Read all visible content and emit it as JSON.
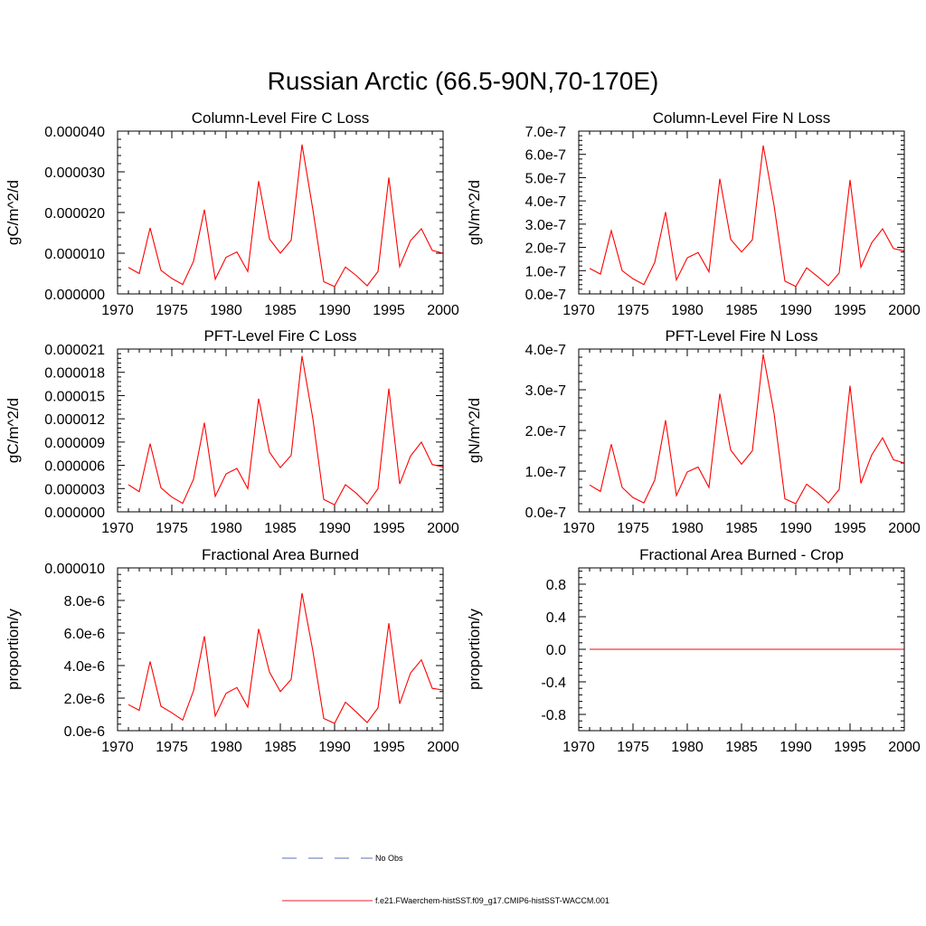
{
  "figure": {
    "title": "Russian Arctic (66.5-90N,70-170E)"
  },
  "legend": {
    "entries": [
      {
        "label": "No Obs",
        "color": "#5b6fb5",
        "style": "dashed"
      },
      {
        "label": "f.e21.FWaerchem-histSST.f09_g17.CMIP6-histSST-WACCM.001",
        "color": "#e8202a",
        "style": "solid"
      }
    ]
  },
  "chart_data": [
    {
      "type": "line",
      "title": "Column-Level Fire C Loss",
      "ylabel": "gC/m^2/d",
      "xlim": [
        1970,
        2000
      ],
      "ylim": [
        0,
        4e-05
      ],
      "xticks": [
        1970,
        1975,
        1980,
        1985,
        1990,
        1995,
        2000
      ],
      "xtick_labels": [
        "1970",
        "1975",
        "1980",
        "1985",
        "1990",
        "1995",
        "2000"
      ],
      "yticks": [
        0,
        1e-05,
        2e-05,
        3e-05,
        4e-05
      ],
      "ytick_labels": [
        "0.000000",
        "0.000010",
        "0.000020",
        "0.000030",
        "0.000040"
      ],
      "series": [
        {
          "color": "#ff0000",
          "x": [
            1971,
            1972,
            1973,
            1974,
            1975,
            1976,
            1977,
            1978,
            1979,
            1980,
            1981,
            1982,
            1983,
            1984,
            1985,
            1986,
            1987,
            1988,
            1989,
            1990,
            1991,
            1992,
            1993,
            1994,
            1995,
            1996,
            1997,
            1998,
            1999,
            2000
          ],
          "y": [
            6.5e-06,
            5e-06,
            1.62e-05,
            5.8e-06,
            3.8e-06,
            2.3e-06,
            8e-06,
            2.07e-05,
            3.6e-06,
            9e-06,
            1.03e-05,
            5.5e-06,
            2.77e-05,
            1.35e-05,
            1e-05,
            1.32e-05,
            3.67e-05,
            2.07e-05,
            3e-06,
            1.8e-06,
            6.6e-06,
            4.5e-06,
            2e-06,
            5.5e-06,
            2.86e-05,
            6.7e-06,
            1.31e-05,
            1.6e-05,
            1.07e-05,
            1e-05
          ]
        }
      ]
    },
    {
      "type": "line",
      "title": "Column-Level Fire N Loss",
      "ylabel": "gN/m^2/d",
      "xlim": [
        1970,
        2000
      ],
      "ylim": [
        0,
        7e-07
      ],
      "xticks": [
        1970,
        1975,
        1980,
        1985,
        1990,
        1995,
        2000
      ],
      "xtick_labels": [
        "1970",
        "1975",
        "1980",
        "1985",
        "1990",
        "1995",
        "2000"
      ],
      "yticks": [
        0,
        1e-07,
        2e-07,
        3e-07,
        4e-07,
        5e-07,
        6e-07,
        7e-07
      ],
      "ytick_labels": [
        "0.0e-7",
        "1.0e-7",
        "2.0e-7",
        "3.0e-7",
        "4.0e-7",
        "5.0e-7",
        "6.0e-7",
        "7.0e-7"
      ],
      "series": [
        {
          "color": "#ff0000",
          "x": [
            1971,
            1972,
            1973,
            1974,
            1975,
            1976,
            1977,
            1978,
            1979,
            1980,
            1981,
            1982,
            1983,
            1984,
            1985,
            1986,
            1987,
            1988,
            1989,
            1990,
            1991,
            1992,
            1993,
            1994,
            1995,
            1996,
            1997,
            1998,
            1999,
            2000
          ],
          "y": [
            1.1e-07,
            8.5e-08,
            2.72e-07,
            1e-07,
            6.5e-08,
            4e-08,
            1.35e-07,
            3.52e-07,
            6e-08,
            1.55e-07,
            1.78e-07,
            9.5e-08,
            4.95e-07,
            2.35e-07,
            1.8e-07,
            2.33e-07,
            6.38e-07,
            3.8e-07,
            5.5e-08,
            3.2e-08,
            1.12e-07,
            7.5e-08,
            3.5e-08,
            9e-08,
            4.9e-07,
            1.15e-07,
            2.2e-07,
            2.8e-07,
            1.95e-07,
            1.85e-07
          ]
        }
      ]
    },
    {
      "type": "line",
      "title": "PFT-Level Fire C Loss",
      "ylabel": "gC/m^2/d",
      "xlim": [
        1970,
        2000
      ],
      "ylim": [
        0,
        2.1e-05
      ],
      "xticks": [
        1970,
        1975,
        1980,
        1985,
        1990,
        1995,
        2000
      ],
      "xtick_labels": [
        "1970",
        "1975",
        "1980",
        "1985",
        "1990",
        "1995",
        "2000"
      ],
      "yticks": [
        0,
        3e-06,
        6e-06,
        9e-06,
        1.2e-05,
        1.5e-05,
        1.8e-05,
        2.1e-05
      ],
      "ytick_labels": [
        "0.000000",
        "0.000003",
        "0.000006",
        "0.000009",
        "0.000012",
        "0.000015",
        "0.000018",
        "0.000021"
      ],
      "series": [
        {
          "color": "#ff0000",
          "x": [
            1971,
            1972,
            1973,
            1974,
            1975,
            1976,
            1977,
            1978,
            1979,
            1980,
            1981,
            1982,
            1983,
            1984,
            1985,
            1986,
            1987,
            1988,
            1989,
            1990,
            1991,
            1992,
            1993,
            1994,
            1995,
            1996,
            1997,
            1998,
            1999,
            2000
          ],
          "y": [
            3.5e-06,
            2.6e-06,
            8.8e-06,
            3.1e-06,
            1.9e-06,
            1.1e-06,
            4.2e-06,
            1.15e-05,
            2e-06,
            4.9e-06,
            5.6e-06,
            3e-06,
            1.46e-05,
            7.7e-06,
            5.7e-06,
            7.3e-06,
            2.01e-05,
            1.2e-05,
            1.6e-06,
            9e-07,
            3.5e-06,
            2.4e-06,
            1e-06,
            3e-06,
            1.59e-05,
            3.6e-06,
            7.2e-06,
            9e-06,
            6.1e-06,
            5.8e-06
          ]
        }
      ]
    },
    {
      "type": "line",
      "title": "PFT-Level Fire N Loss",
      "ylabel": "gN/m^2/d",
      "xlim": [
        1970,
        2000
      ],
      "ylim": [
        0,
        4e-07
      ],
      "xticks": [
        1970,
        1975,
        1980,
        1985,
        1990,
        1995,
        2000
      ],
      "xtick_labels": [
        "1970",
        "1975",
        "1980",
        "1985",
        "1990",
        "1995",
        "2000"
      ],
      "yticks": [
        0,
        1e-07,
        2e-07,
        3e-07,
        4e-07
      ],
      "ytick_labels": [
        "0.0e-7",
        "1.0e-7",
        "2.0e-7",
        "3.0e-7",
        "4.0e-7"
      ],
      "series": [
        {
          "color": "#ff0000",
          "x": [
            1971,
            1972,
            1973,
            1974,
            1975,
            1976,
            1977,
            1978,
            1979,
            1980,
            1981,
            1982,
            1983,
            1984,
            1985,
            1986,
            1987,
            1988,
            1989,
            1990,
            1991,
            1992,
            1993,
            1994,
            1995,
            1996,
            1997,
            1998,
            1999,
            2000
          ],
          "y": [
            6.6e-08,
            5e-08,
            1.66e-07,
            6e-08,
            3.5e-08,
            2.2e-08,
            7.8e-08,
            2.25e-07,
            4e-08,
            9.8e-08,
            1.1e-07,
            6e-08,
            2.9e-07,
            1.52e-07,
            1.17e-07,
            1.5e-07,
            3.87e-07,
            2.42e-07,
            3.2e-08,
            2e-08,
            6.8e-08,
            4.7e-08,
            2.2e-08,
            5.5e-08,
            3.1e-07,
            7e-08,
            1.4e-07,
            1.82e-07,
            1.28e-07,
            1.2e-07
          ]
        }
      ]
    },
    {
      "type": "line",
      "title": "Fractional Area Burned",
      "ylabel": "proportion/y",
      "xlim": [
        1970,
        2000
      ],
      "ylim": [
        0,
        1e-05
      ],
      "xticks": [
        1970,
        1975,
        1980,
        1985,
        1990,
        1995,
        2000
      ],
      "xtick_labels": [
        "1970",
        "1975",
        "1980",
        "1985",
        "1990",
        "1995",
        "2000"
      ],
      "yticks": [
        0,
        2e-06,
        4e-06,
        6e-06,
        8e-06,
        1e-05
      ],
      "ytick_labels": [
        "0.0e-6",
        "2.0e-6",
        "4.0e-6",
        "6.0e-6",
        "8.0e-6",
        "0.000010"
      ],
      "series": [
        {
          "color": "#ff0000",
          "x": [
            1971,
            1972,
            1973,
            1974,
            1975,
            1976,
            1977,
            1978,
            1979,
            1980,
            1981,
            1982,
            1983,
            1984,
            1985,
            1986,
            1987,
            1988,
            1989,
            1990,
            1991,
            1992,
            1993,
            1994,
            1995,
            1996,
            1997,
            1998,
            1999,
            2000
          ],
          "y": [
            1.6e-06,
            1.25e-06,
            4.25e-06,
            1.5e-06,
            1.1e-06,
            6.5e-07,
            2.45e-06,
            5.8e-06,
            9e-07,
            2.3e-06,
            2.65e-06,
            1.45e-06,
            6.25e-06,
            3.6e-06,
            2.4e-06,
            3.15e-06,
            8.45e-06,
            4.9e-06,
            7.5e-07,
            4.5e-07,
            1.75e-06,
            1.15e-06,
            5e-07,
            1.4e-06,
            6.6e-06,
            1.65e-06,
            3.55e-06,
            4.35e-06,
            2.6e-06,
            2.5e-06
          ]
        }
      ]
    },
    {
      "type": "line",
      "title": "Fractional Area Burned - Crop",
      "ylabel": "proportion/y",
      "xlim": [
        1970,
        2000
      ],
      "ylim": [
        -1,
        1
      ],
      "xticks": [
        1970,
        1975,
        1980,
        1985,
        1990,
        1995,
        2000
      ],
      "xtick_labels": [
        "1970",
        "1975",
        "1980",
        "1985",
        "1990",
        "1995",
        "2000"
      ],
      "yticks": [
        -0.8,
        -0.4,
        0,
        0.4,
        0.8
      ],
      "ytick_labels": [
        "-0.8",
        "-0.4",
        "0.0",
        "0.4",
        "0.8"
      ],
      "series": [
        {
          "color": "#ff0000",
          "x": [
            1971,
            2000
          ],
          "y": [
            0,
            0
          ]
        }
      ]
    }
  ]
}
